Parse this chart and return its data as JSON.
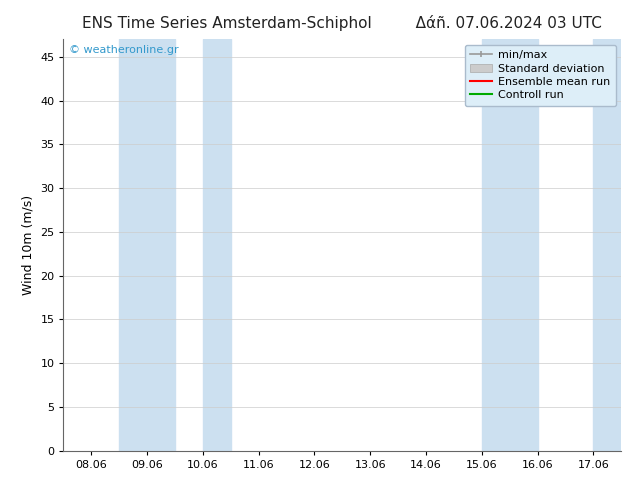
{
  "title_left": "ENS Time Series Amsterdam-Schiphol",
  "title_right": "Δάñ. 07.06.2024 03 UTC",
  "ylabel": "Wind 10m (m/s)",
  "watermark": "© weatheronline.gr",
  "ylim": [
    0,
    47
  ],
  "yticks": [
    0,
    5,
    10,
    15,
    20,
    25,
    30,
    35,
    40,
    45
  ],
  "x_labels": [
    "08.06",
    "09.06",
    "10.06",
    "11.06",
    "12.06",
    "13.06",
    "14.06",
    "15.06",
    "16.06",
    "17.06"
  ],
  "x_positions": [
    0,
    1,
    2,
    3,
    4,
    5,
    6,
    7,
    8,
    9
  ],
  "xlim": [
    -0.5,
    9.5
  ],
  "blue_bands": [
    [
      0.5,
      1.5
    ],
    [
      2.0,
      2.5
    ],
    [
      7.0,
      8.0
    ],
    [
      9.0,
      9.5
    ]
  ],
  "band_color": "#cce0f0",
  "background_color": "#ffffff",
  "legend_bg_color": "#ddeef8",
  "legend_entries": [
    "min/max",
    "Standard deviation",
    "Ensemble mean run",
    "Controll run"
  ],
  "legend_line_colors": [
    "#999999",
    "#bbbbbb",
    "#ff0000",
    "#00aa00"
  ],
  "title_fontsize": 11,
  "tick_fontsize": 8,
  "ylabel_fontsize": 9,
  "watermark_color": "#3399cc",
  "watermark_fontsize": 8,
  "legend_fontsize": 8
}
